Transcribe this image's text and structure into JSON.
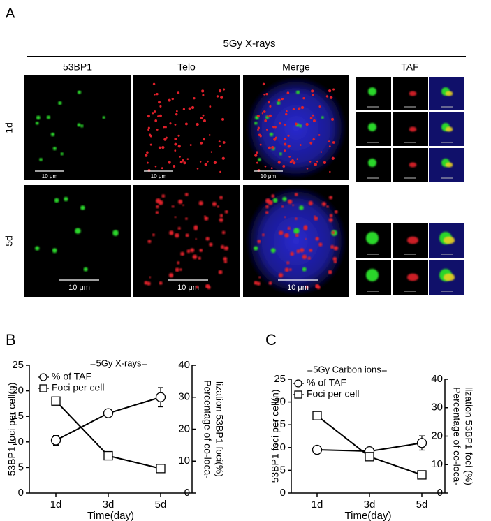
{
  "panel_a": {
    "label": "A",
    "title": "5Gy X-rays",
    "columns": [
      "53BP1",
      "Telo",
      "Merge",
      "TAF"
    ],
    "rows": [
      "1d",
      "5d"
    ],
    "scale_bar": "10 μm"
  },
  "chart_data": [
    {
      "panel_label": "B",
      "type": "line",
      "title": "5Gy X-rays",
      "xlabel": "Time(day)",
      "ylabel": "53BP1 foci per cell(n)",
      "y2label": [
        "Percentage of co-loca-",
        "lization 53BP1 foci(%)"
      ],
      "categories": [
        "1d",
        "3d",
        "5d"
      ],
      "ylim": [
        0,
        25
      ],
      "yticks": [
        0,
        5,
        10,
        15,
        20,
        25
      ],
      "y2lim": [
        0,
        40
      ],
      "y2ticks": [
        0,
        10,
        20,
        30,
        40
      ],
      "legend": "upper left",
      "series": [
        {
          "name": "% of TAF",
          "axis": "y2",
          "marker": "circle",
          "color": "#000000",
          "values": [
            16.5,
            25,
            30
          ],
          "errors": [
            1.5,
            0.8,
            3
          ]
        },
        {
          "name": "Foci per cell",
          "marker": "square",
          "color": "#000000",
          "values": [
            18,
            7.3,
            4.8
          ]
        }
      ]
    },
    {
      "panel_label": "C",
      "type": "line",
      "title": "5Gy Carbon ions",
      "xlabel": "Time(day)",
      "ylabel": "53BP1 foci per cell(n)",
      "y2label": [
        "Percentage of co-loca-",
        "lization 53BP1 foci (%)"
      ],
      "categories": [
        "1d",
        "3d",
        "5d"
      ],
      "ylim": [
        0,
        25
      ],
      "yticks": [
        0,
        5,
        10,
        15,
        20,
        25
      ],
      "y2lim": [
        0,
        40
      ],
      "y2ticks": [
        0,
        10,
        20,
        30,
        40
      ],
      "legend": "upper left",
      "series": [
        {
          "name": "% of TAF",
          "axis": "y2",
          "marker": "circle",
          "color": "#000000",
          "values": [
            15.2,
            14.7,
            17.6
          ],
          "errors": [
            0.8,
            0.8,
            2.5
          ]
        },
        {
          "name": "Foci per cell",
          "marker": "square",
          "color": "#000000",
          "values": [
            17,
            8,
            4
          ]
        }
      ]
    }
  ]
}
